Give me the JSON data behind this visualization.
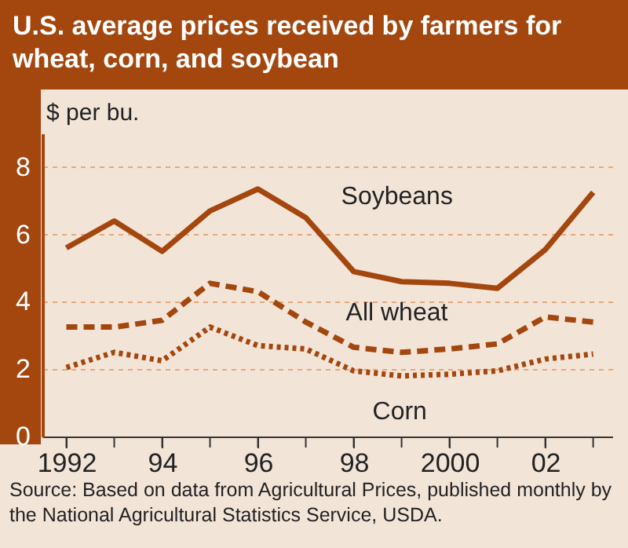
{
  "chart_data": {
    "type": "line",
    "title": "U.S. average prices received by farmers for wheat, corn, and soybean",
    "ylabel": "$ per bu.",
    "x": [
      1992,
      1993,
      1994,
      1995,
      1996,
      1997,
      1998,
      1999,
      2000,
      2001,
      2002,
      2003
    ],
    "series": [
      {
        "name": "Soybeans",
        "color": "#a3470f",
        "line_style": "solid",
        "values": [
          5.6,
          6.4,
          5.5,
          6.7,
          7.35,
          6.5,
          4.9,
          4.6,
          4.55,
          4.4,
          5.55,
          7.25
        ]
      },
      {
        "name": "All wheat",
        "color": "#a3470f",
        "line_style": "dashed",
        "values": [
          3.25,
          3.25,
          3.45,
          4.55,
          4.3,
          3.4,
          2.65,
          2.5,
          2.6,
          2.75,
          3.55,
          3.4
        ]
      },
      {
        "name": "Corn",
        "color": "#a3470f",
        "line_style": "dotted",
        "values": [
          2.05,
          2.5,
          2.25,
          3.25,
          2.7,
          2.6,
          1.95,
          1.8,
          1.85,
          1.95,
          2.3,
          2.45
        ]
      }
    ],
    "xlim": [
      1991.5,
      2003.4
    ],
    "xticks": [
      1992,
      {
        "value": 1993,
        "label": null
      },
      {
        "value": 1994,
        "label": "94"
      },
      {
        "value": 1995,
        "label": null
      },
      {
        "value": 1996,
        "label": "96"
      },
      {
        "value": 1997,
        "label": null
      },
      {
        "value": 1998,
        "label": "98"
      },
      {
        "value": 1999,
        "label": null
      },
      2000,
      {
        "value": 2001,
        "label": null
      },
      {
        "value": 2002,
        "label": "02"
      },
      {
        "value": 2003,
        "label": null
      }
    ],
    "ylim": [
      0,
      9
    ],
    "yticks": [
      0,
      2,
      4,
      6,
      8
    ],
    "grid": "y",
    "annotations": [
      "Source: Based on data from Agricultural Prices, published monthly by the National Agricultural Statistics Service, USDA."
    ]
  }
}
